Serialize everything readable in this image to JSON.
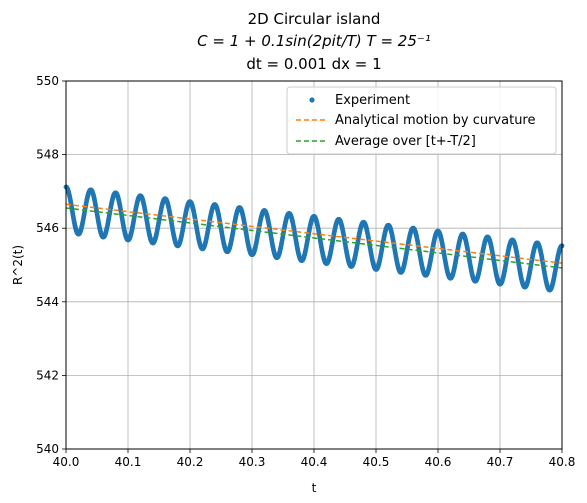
{
  "chart_data": {
    "type": "line",
    "title_lines": [
      "2D Circular island",
      "C = 1 + 0.1sin(2pit/T)  T = 25⁻¹",
      "dt = 0.001 dx = 1"
    ],
    "xlabel": "t",
    "ylabel": "R^2(t)",
    "xlim": [
      40.0,
      40.8
    ],
    "ylim": [
      540,
      550
    ],
    "xticks": [
      "40.0",
      "40.1",
      "40.2",
      "40.3",
      "40.4",
      "40.5",
      "40.6",
      "40.7",
      "40.8"
    ],
    "yticks": [
      "540",
      "542",
      "544",
      "546",
      "548",
      "550"
    ],
    "grid": true,
    "legend_position": "top-right",
    "series": [
      {
        "name": "Experiment",
        "style": "dots",
        "color": "#1f77b4",
        "trend_start": 546.5,
        "trend_end": 544.9,
        "amplitude": 0.62,
        "period": 0.04,
        "x_range": [
          40.0,
          40.8
        ]
      },
      {
        "name": "Analytical motion by curvature",
        "style": "dashed",
        "color": "#ff7f0e",
        "x": [
          40.0,
          40.8
        ],
        "y": [
          546.65,
          545.05
        ]
      },
      {
        "name": "Average over [t+-T/2]",
        "style": "dashed",
        "color": "#2ca02c",
        "x": [
          40.0,
          40.8
        ],
        "y": [
          546.55,
          544.92
        ]
      }
    ]
  }
}
